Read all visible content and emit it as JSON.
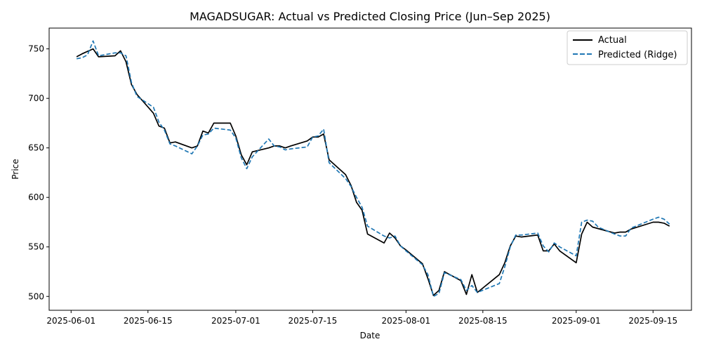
{
  "chart_data": {
    "type": "line",
    "title": "MAGADSUGAR: Actual vs Predicted Closing Price (Jun–Sep 2025)",
    "xlabel": "Date",
    "ylabel": "Price",
    "xlim": [
      "2025-05-28",
      "2025-09-22"
    ],
    "ylim": [
      486,
      771
    ],
    "x_ticks": [
      "2025-06-01",
      "2025-06-15",
      "2025-07-01",
      "2025-07-15",
      "2025-08-01",
      "2025-08-15",
      "2025-09-01",
      "2025-09-15"
    ],
    "y_ticks": [
      500,
      550,
      600,
      650,
      700,
      750
    ],
    "grid": false,
    "legend": "top-right",
    "colors": {
      "actual": "#000000",
      "predicted": "#1f77b4"
    },
    "series": [
      {
        "name": "Actual",
        "style": "solid",
        "points": [
          [
            "2025-06-02",
            742
          ],
          [
            "2025-06-03",
            745
          ],
          [
            "2025-06-05",
            750
          ],
          [
            "2025-06-06",
            742
          ],
          [
            "2025-06-09",
            743
          ],
          [
            "2025-06-10",
            748
          ],
          [
            "2025-06-11",
            737
          ],
          [
            "2025-06-12",
            714
          ],
          [
            "2025-06-13",
            704
          ],
          [
            "2025-06-16",
            685
          ],
          [
            "2025-06-17",
            672
          ],
          [
            "2025-06-18",
            670
          ],
          [
            "2025-06-19",
            655
          ],
          [
            "2025-06-20",
            656
          ],
          [
            "2025-06-23",
            650
          ],
          [
            "2025-06-24",
            652
          ],
          [
            "2025-06-25",
            667
          ],
          [
            "2025-06-26",
            665
          ],
          [
            "2025-06-27",
            675
          ],
          [
            "2025-06-30",
            675
          ],
          [
            "2025-07-01",
            662
          ],
          [
            "2025-07-02",
            643
          ],
          [
            "2025-07-03",
            633
          ],
          [
            "2025-07-04",
            646
          ],
          [
            "2025-07-07",
            650
          ],
          [
            "2025-07-08",
            652
          ],
          [
            "2025-07-09",
            652
          ],
          [
            "2025-07-10",
            650
          ],
          [
            "2025-07-11",
            652
          ],
          [
            "2025-07-14",
            657
          ],
          [
            "2025-07-15",
            661
          ],
          [
            "2025-07-16",
            661
          ],
          [
            "2025-07-17",
            664
          ],
          [
            "2025-07-18",
            638
          ],
          [
            "2025-07-21",
            623
          ],
          [
            "2025-07-22",
            612
          ],
          [
            "2025-07-23",
            595
          ],
          [
            "2025-07-24",
            587
          ],
          [
            "2025-07-25",
            563
          ],
          [
            "2025-07-28",
            554
          ],
          [
            "2025-07-29",
            564
          ],
          [
            "2025-07-30",
            559
          ],
          [
            "2025-07-31",
            551
          ],
          [
            "2025-08-01",
            547
          ],
          [
            "2025-08-04",
            533
          ],
          [
            "2025-08-05",
            518
          ],
          [
            "2025-08-06",
            501
          ],
          [
            "2025-08-07",
            506
          ],
          [
            "2025-08-08",
            525
          ],
          [
            "2025-08-11",
            516
          ],
          [
            "2025-08-12",
            502
          ],
          [
            "2025-08-13",
            522
          ],
          [
            "2025-08-14",
            504
          ],
          [
            "2025-08-18",
            522
          ],
          [
            "2025-08-19",
            534
          ],
          [
            "2025-08-20",
            551
          ],
          [
            "2025-08-21",
            561
          ],
          [
            "2025-08-22",
            560
          ],
          [
            "2025-08-25",
            562
          ],
          [
            "2025-08-26",
            546
          ],
          [
            "2025-08-27",
            546
          ],
          [
            "2025-08-28",
            553
          ],
          [
            "2025-08-29",
            546
          ],
          [
            "2025-09-01",
            534
          ],
          [
            "2025-09-02",
            563
          ],
          [
            "2025-09-03",
            575
          ],
          [
            "2025-09-04",
            570
          ],
          [
            "2025-09-08",
            564
          ],
          [
            "2025-09-09",
            565
          ],
          [
            "2025-09-10",
            565
          ],
          [
            "2025-09-11",
            568
          ],
          [
            "2025-09-15",
            575
          ],
          [
            "2025-09-16",
            575
          ],
          [
            "2025-09-17",
            574
          ],
          [
            "2025-09-18",
            571
          ]
        ]
      },
      {
        "name": "Predicted (Ridge)",
        "style": "dashed",
        "points": [
          [
            "2025-06-02",
            740
          ],
          [
            "2025-06-03",
            741
          ],
          [
            "2025-06-04",
            744
          ],
          [
            "2025-06-05",
            758
          ],
          [
            "2025-06-06",
            743
          ],
          [
            "2025-06-09",
            746
          ],
          [
            "2025-06-10",
            746
          ],
          [
            "2025-06-11",
            743
          ],
          [
            "2025-06-12",
            716
          ],
          [
            "2025-06-13",
            702
          ],
          [
            "2025-06-16",
            691
          ],
          [
            "2025-06-17",
            676
          ],
          [
            "2025-06-18",
            668
          ],
          [
            "2025-06-19",
            654
          ],
          [
            "2025-06-20",
            652
          ],
          [
            "2025-06-23",
            644
          ],
          [
            "2025-06-24",
            652
          ],
          [
            "2025-06-25",
            663
          ],
          [
            "2025-06-26",
            664
          ],
          [
            "2025-06-27",
            670
          ],
          [
            "2025-06-30",
            668
          ],
          [
            "2025-07-01",
            660
          ],
          [
            "2025-07-02",
            640
          ],
          [
            "2025-07-03",
            629
          ],
          [
            "2025-07-04",
            641
          ],
          [
            "2025-07-07",
            659
          ],
          [
            "2025-07-08",
            652
          ],
          [
            "2025-07-09",
            651
          ],
          [
            "2025-07-10",
            648
          ],
          [
            "2025-07-11",
            649
          ],
          [
            "2025-07-14",
            651
          ],
          [
            "2025-07-15",
            661
          ],
          [
            "2025-07-16",
            662
          ],
          [
            "2025-07-17",
            669
          ],
          [
            "2025-07-18",
            635
          ],
          [
            "2025-07-21",
            619
          ],
          [
            "2025-07-22",
            611
          ],
          [
            "2025-07-23",
            600
          ],
          [
            "2025-07-24",
            590
          ],
          [
            "2025-07-25",
            571
          ],
          [
            "2025-07-28",
            561
          ],
          [
            "2025-07-29",
            559
          ],
          [
            "2025-07-30",
            561
          ],
          [
            "2025-07-31",
            551
          ],
          [
            "2025-08-01",
            546
          ],
          [
            "2025-08-04",
            532
          ],
          [
            "2025-08-05",
            522
          ],
          [
            "2025-08-06",
            500
          ],
          [
            "2025-08-07",
            503
          ],
          [
            "2025-08-08",
            524
          ],
          [
            "2025-08-11",
            517
          ],
          [
            "2025-08-12",
            506
          ],
          [
            "2025-08-13",
            511
          ],
          [
            "2025-08-14",
            504
          ],
          [
            "2025-08-18",
            513
          ],
          [
            "2025-08-19",
            530
          ],
          [
            "2025-08-20",
            550
          ],
          [
            "2025-08-21",
            562
          ],
          [
            "2025-08-22",
            562
          ],
          [
            "2025-08-25",
            564
          ],
          [
            "2025-08-26",
            551
          ],
          [
            "2025-08-27",
            545
          ],
          [
            "2025-08-28",
            554
          ],
          [
            "2025-08-29",
            550
          ],
          [
            "2025-09-01",
            541
          ],
          [
            "2025-09-02",
            575
          ],
          [
            "2025-09-03",
            577
          ],
          [
            "2025-09-04",
            576
          ],
          [
            "2025-09-05",
            570
          ],
          [
            "2025-09-08",
            563
          ],
          [
            "2025-09-09",
            561
          ],
          [
            "2025-09-10",
            561
          ],
          [
            "2025-09-11",
            569
          ],
          [
            "2025-09-15",
            578
          ],
          [
            "2025-09-16",
            580
          ],
          [
            "2025-09-17",
            578
          ],
          [
            "2025-09-18",
            573
          ]
        ]
      }
    ]
  }
}
